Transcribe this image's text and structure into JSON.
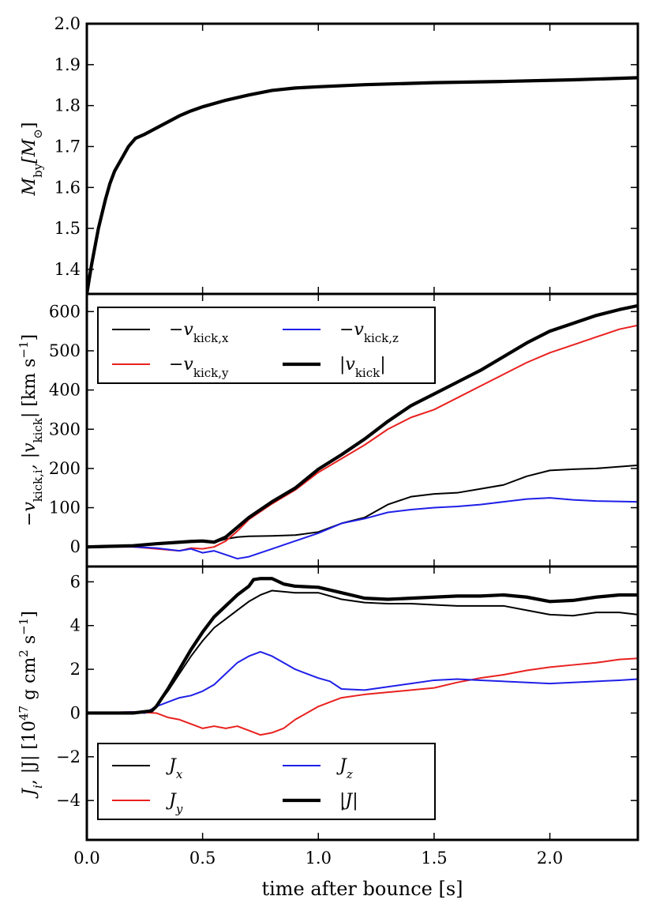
{
  "chart_data": [
    {
      "type": "line",
      "id": "mass",
      "ylabel": "M_by [M_⊙]",
      "ylabel_parts": {
        "main": "M",
        "sub": "by",
        "bracket": "[M",
        "sub2": "⊙",
        "close": "]"
      },
      "xlim": [
        0.0,
        2.38
      ],
      "ylim": [
        1.34,
        2.0
      ],
      "yticks": [
        1.4,
        1.5,
        1.6,
        1.7,
        1.8,
        1.9,
        2.0
      ],
      "ytick_labels": [
        "1.4",
        "1.5",
        "1.6",
        "1.7",
        "1.8",
        "1.9",
        "2.0"
      ],
      "series": [
        {
          "name": "M_by",
          "color": "#000000",
          "width": "thick",
          "x": [
            0.0,
            0.02,
            0.05,
            0.08,
            0.1,
            0.12,
            0.15,
            0.18,
            0.21,
            0.25,
            0.3,
            0.35,
            0.4,
            0.45,
            0.5,
            0.6,
            0.7,
            0.8,
            0.9,
            1.0,
            1.2,
            1.5,
            1.8,
            2.1,
            2.38
          ],
          "y": [
            1.34,
            1.41,
            1.5,
            1.57,
            1.61,
            1.64,
            1.67,
            1.7,
            1.72,
            1.73,
            1.745,
            1.76,
            1.775,
            1.787,
            1.797,
            1.813,
            1.826,
            1.837,
            1.843,
            1.846,
            1.851,
            1.856,
            1.859,
            1.863,
            1.868
          ]
        }
      ]
    },
    {
      "type": "line",
      "id": "kick",
      "ylabel": "−v_kick,i, |v_kick| [km s⁻¹]",
      "ylabel_parts": {
        "prefix": "−v",
        "sub1": "kick,i",
        "mid": ", |v",
        "sub2": "kick",
        "close": "| [km s",
        "sup": "−1",
        "end": "]"
      },
      "xlim": [
        0.0,
        2.38
      ],
      "ylim": [
        -50,
        645
      ],
      "yticks": [
        0,
        100,
        200,
        300,
        400,
        500,
        600
      ],
      "ytick_labels": [
        "0",
        "100",
        "200",
        "300",
        "400",
        "500",
        "600"
      ],
      "legend": {
        "entries": [
          {
            "label": "−v_kick,x",
            "main": "−v",
            "sub": "kick,x",
            "series": 0
          },
          {
            "label": "−v_kick,z",
            "main": "−v",
            "sub": "kick,z",
            "series": 2
          },
          {
            "label": "−v_kick,y",
            "main": "−v",
            "sub": "kick,y",
            "series": 1
          },
          {
            "label": "|v_kick|",
            "main": "|v",
            "sub": "kick",
            "end": "|",
            "series": 3
          }
        ],
        "placement": "upper-left"
      },
      "series": [
        {
          "name": "−v_kick,x",
          "color": "#000000",
          "width": "thin",
          "x": [
            0.0,
            0.2,
            0.3,
            0.4,
            0.5,
            0.55,
            0.6,
            0.65,
            0.7,
            0.8,
            0.9,
            1.0,
            1.1,
            1.2,
            1.3,
            1.4,
            1.5,
            1.6,
            1.7,
            1.8,
            1.9,
            2.0,
            2.1,
            2.2,
            2.38
          ],
          "y": [
            0,
            3,
            8,
            12,
            15,
            12,
            20,
            25,
            27,
            28,
            30,
            38,
            60,
            75,
            108,
            128,
            135,
            138,
            148,
            158,
            180,
            195,
            198,
            200,
            208
          ]
        },
        {
          "name": "−v_kick,y",
          "color": "#e8211f",
          "width": "thin",
          "x": [
            0.0,
            0.2,
            0.3,
            0.4,
            0.45,
            0.5,
            0.55,
            0.6,
            0.65,
            0.7,
            0.8,
            0.9,
            1.0,
            1.1,
            1.2,
            1.3,
            1.4,
            1.5,
            1.6,
            1.7,
            1.8,
            1.9,
            2.0,
            2.1,
            2.2,
            2.3,
            2.38
          ],
          "y": [
            0,
            0,
            -5,
            -10,
            -3,
            -5,
            0,
            15,
            40,
            70,
            110,
            145,
            190,
            225,
            260,
            300,
            330,
            350,
            380,
            410,
            440,
            470,
            495,
            515,
            535,
            555,
            565
          ]
        },
        {
          "name": "−v_kick,z",
          "color": "#1f1fe8",
          "width": "thin",
          "x": [
            0.0,
            0.2,
            0.3,
            0.4,
            0.45,
            0.5,
            0.55,
            0.6,
            0.65,
            0.7,
            0.8,
            0.9,
            1.0,
            1.1,
            1.2,
            1.3,
            1.4,
            1.5,
            1.6,
            1.7,
            1.8,
            1.9,
            2.0,
            2.1,
            2.2,
            2.38
          ],
          "y": [
            0,
            0,
            -3,
            -10,
            -5,
            -15,
            -10,
            -20,
            -30,
            -25,
            -5,
            15,
            35,
            60,
            72,
            88,
            95,
            100,
            103,
            108,
            115,
            122,
            125,
            120,
            117,
            115
          ]
        },
        {
          "name": "|v_kick|",
          "color": "#000000",
          "width": "thick",
          "x": [
            0.0,
            0.2,
            0.3,
            0.4,
            0.45,
            0.5,
            0.55,
            0.6,
            0.65,
            0.7,
            0.8,
            0.9,
            1.0,
            1.1,
            1.2,
            1.3,
            1.4,
            1.5,
            1.6,
            1.7,
            1.8,
            1.9,
            2.0,
            2.1,
            2.2,
            2.3,
            2.38
          ],
          "y": [
            0,
            3,
            8,
            12,
            14,
            15,
            12,
            25,
            50,
            75,
            115,
            150,
            198,
            235,
            275,
            320,
            360,
            390,
            420,
            450,
            485,
            520,
            550,
            570,
            590,
            605,
            615
          ]
        }
      ]
    },
    {
      "type": "line",
      "id": "angmom",
      "ylabel": "J_i, |J| [10⁴⁷ g cm² s⁻¹]",
      "ylabel_parts": {
        "main": "J",
        "sub": "i",
        "mid": ", |J| [10",
        "sup1": "47",
        "unit1": " g cm",
        "sup2": "2",
        "unit2": " s",
        "sup3": "−1",
        "end": "]"
      },
      "xlabel": "time after bounce [s]",
      "xlim": [
        0.0,
        2.38
      ],
      "ylim": [
        -5.8,
        6.7
      ],
      "yticks": [
        -4,
        -2,
        0,
        2,
        4,
        6
      ],
      "ytick_labels": [
        "−4",
        "−2",
        "0",
        "2",
        "4",
        "6"
      ],
      "xticks": [
        0.0,
        0.5,
        1.0,
        1.5,
        2.0
      ],
      "xtick_labels": [
        "0.0",
        "0.5",
        "1.0",
        "1.5",
        "2.0"
      ],
      "legend": {
        "entries": [
          {
            "label": "J_x",
            "main": "J",
            "sub": "x",
            "series": 0
          },
          {
            "label": "J_z",
            "main": "J",
            "sub": "z",
            "series": 2
          },
          {
            "label": "J_y",
            "main": "J",
            "sub": "y",
            "series": 1
          },
          {
            "label": "|J|",
            "main": "|J|",
            "sub": "",
            "series": 3
          }
        ],
        "placement": "lower-left"
      },
      "series": [
        {
          "name": "J_x",
          "color": "#000000",
          "width": "thin",
          "x": [
            0.0,
            0.2,
            0.28,
            0.3,
            0.35,
            0.4,
            0.45,
            0.5,
            0.55,
            0.6,
            0.65,
            0.7,
            0.75,
            0.8,
            0.9,
            1.0,
            1.1,
            1.2,
            1.3,
            1.4,
            1.5,
            1.6,
            1.7,
            1.8,
            1.9,
            2.0,
            2.1,
            2.2,
            2.3,
            2.38
          ],
          "y": [
            0,
            0,
            0.1,
            0.3,
            1.0,
            1.8,
            2.6,
            3.3,
            3.9,
            4.3,
            4.7,
            5.1,
            5.4,
            5.6,
            5.5,
            5.5,
            5.2,
            5.05,
            5.0,
            5.0,
            4.95,
            4.9,
            4.9,
            4.9,
            4.7,
            4.5,
            4.45,
            4.6,
            4.6,
            4.5
          ]
        },
        {
          "name": "J_y",
          "color": "#e8211f",
          "width": "thin",
          "x": [
            0.0,
            0.2,
            0.3,
            0.35,
            0.4,
            0.45,
            0.5,
            0.55,
            0.6,
            0.65,
            0.7,
            0.75,
            0.8,
            0.85,
            0.9,
            0.95,
            1.0,
            1.05,
            1.1,
            1.2,
            1.3,
            1.4,
            1.5,
            1.6,
            1.7,
            1.8,
            1.9,
            2.0,
            2.1,
            2.2,
            2.3,
            2.38
          ],
          "y": [
            0,
            0.05,
            0,
            -0.2,
            -0.3,
            -0.5,
            -0.7,
            -0.6,
            -0.7,
            -0.6,
            -0.8,
            -1.0,
            -0.9,
            -0.7,
            -0.3,
            0.0,
            0.3,
            0.5,
            0.7,
            0.85,
            0.95,
            1.05,
            1.15,
            1.4,
            1.6,
            1.75,
            1.95,
            2.1,
            2.2,
            2.3,
            2.45,
            2.5
          ]
        },
        {
          "name": "J_z",
          "color": "#1f1fe8",
          "width": "thin",
          "x": [
            0.0,
            0.2,
            0.25,
            0.3,
            0.35,
            0.4,
            0.45,
            0.5,
            0.55,
            0.6,
            0.65,
            0.7,
            0.75,
            0.8,
            0.85,
            0.9,
            0.95,
            1.0,
            1.05,
            1.1,
            1.2,
            1.3,
            1.4,
            1.5,
            1.6,
            1.7,
            1.8,
            1.9,
            2.0,
            2.1,
            2.2,
            2.3,
            2.38
          ],
          "y": [
            0,
            0.05,
            0,
            0.3,
            0.5,
            0.7,
            0.8,
            1.0,
            1.3,
            1.8,
            2.3,
            2.6,
            2.8,
            2.6,
            2.3,
            2.0,
            1.8,
            1.6,
            1.45,
            1.1,
            1.05,
            1.2,
            1.35,
            1.5,
            1.55,
            1.5,
            1.45,
            1.4,
            1.35,
            1.4,
            1.45,
            1.5,
            1.55
          ]
        },
        {
          "name": "|J|",
          "color": "#000000",
          "width": "thick",
          "x": [
            0.0,
            0.2,
            0.28,
            0.3,
            0.35,
            0.4,
            0.45,
            0.5,
            0.55,
            0.6,
            0.65,
            0.7,
            0.72,
            0.75,
            0.8,
            0.85,
            0.9,
            1.0,
            1.1,
            1.2,
            1.3,
            1.4,
            1.5,
            1.6,
            1.7,
            1.8,
            1.9,
            2.0,
            2.1,
            2.2,
            2.3,
            2.38
          ],
          "y": [
            0,
            0,
            0.1,
            0.3,
            1.1,
            2.0,
            2.9,
            3.7,
            4.4,
            4.9,
            5.4,
            5.8,
            6.1,
            6.15,
            6.15,
            5.9,
            5.8,
            5.75,
            5.5,
            5.25,
            5.2,
            5.25,
            5.3,
            5.35,
            5.35,
            5.4,
            5.3,
            5.1,
            5.15,
            5.3,
            5.4,
            5.4
          ]
        }
      ]
    }
  ]
}
